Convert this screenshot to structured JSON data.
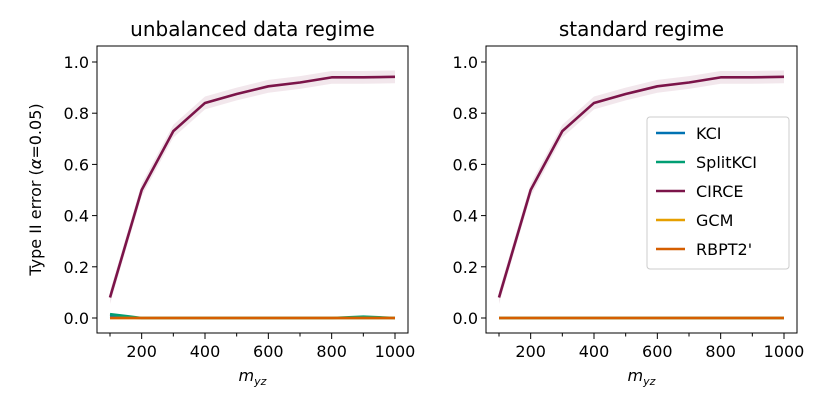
{
  "chart_data": [
    {
      "type": "line",
      "title": "unbalanced data regime",
      "xlabel": "m_yz",
      "xlabel_main": "m",
      "xlabel_sub": "yz",
      "ylabel": "Type II error (α=0.05)",
      "ylabel_pre": "Type II error (",
      "ylabel_alpha": "α",
      "ylabel_post": "=0.05)",
      "xlim": [
        100,
        1000
      ],
      "ylim": [
        0.0,
        1.0
      ],
      "xticks": [
        200,
        400,
        600,
        800,
        1000
      ],
      "yticks": [
        0.0,
        0.2,
        0.4,
        0.6,
        0.8,
        1.0
      ],
      "legend": false,
      "x": [
        100,
        200,
        300,
        400,
        500,
        600,
        700,
        800,
        900,
        1000
      ],
      "series": [
        {
          "name": "KCI",
          "color": "#0072B2",
          "values": [
            0.005,
            0,
            0,
            0,
            0,
            0,
            0,
            0,
            0,
            0
          ]
        },
        {
          "name": "SplitKCI",
          "color": "#009E73",
          "values": [
            0.015,
            0,
            0,
            0,
            0,
            0,
            0,
            0,
            0.005,
            0
          ]
        },
        {
          "name": "CIRCE",
          "color": "#7B1449",
          "values": [
            0.08,
            0.5,
            0.73,
            0.84,
            0.875,
            0.905,
            0.92,
            0.94,
            0.94,
            0.942
          ],
          "band": 0.025
        },
        {
          "name": "GCM",
          "color": "#E69F00",
          "values": [
            0,
            0,
            0,
            0,
            0,
            0,
            0,
            0,
            0,
            0
          ]
        },
        {
          "name": "RBPT2'",
          "color": "#D55E00",
          "values": [
            0,
            0,
            0,
            0,
            0,
            0,
            0,
            0,
            0,
            0
          ]
        }
      ]
    },
    {
      "type": "line",
      "title": "standard regime",
      "xlabel": "m_yz",
      "xlabel_main": "m",
      "xlabel_sub": "yz",
      "ylabel": "",
      "xlim": [
        100,
        1000
      ],
      "ylim": [
        0.0,
        1.0
      ],
      "xticks": [
        200,
        400,
        600,
        800,
        1000
      ],
      "yticks": [
        0.0,
        0.2,
        0.4,
        0.6,
        0.8,
        1.0
      ],
      "legend": true,
      "legend_position": "center-right",
      "x": [
        100,
        200,
        300,
        400,
        500,
        600,
        700,
        800,
        900,
        1000
      ],
      "series": [
        {
          "name": "KCI",
          "color": "#0072B2",
          "values": [
            0,
            0,
            0,
            0,
            0,
            0,
            0,
            0,
            0,
            0
          ]
        },
        {
          "name": "SplitKCI",
          "color": "#009E73",
          "values": [
            0,
            0,
            0,
            0,
            0,
            0,
            0,
            0,
            0,
            0
          ]
        },
        {
          "name": "CIRCE",
          "color": "#7B1449",
          "values": [
            0.08,
            0.5,
            0.73,
            0.84,
            0.875,
            0.905,
            0.92,
            0.94,
            0.94,
            0.942
          ],
          "band": 0.025
        },
        {
          "name": "GCM",
          "color": "#E69F00",
          "values": [
            0,
            0,
            0,
            0,
            0,
            0,
            0,
            0,
            0,
            0
          ]
        },
        {
          "name": "RBPT2'",
          "color": "#D55E00",
          "values": [
            0,
            0,
            0,
            0,
            0,
            0,
            0,
            0,
            0,
            0
          ]
        }
      ]
    }
  ]
}
